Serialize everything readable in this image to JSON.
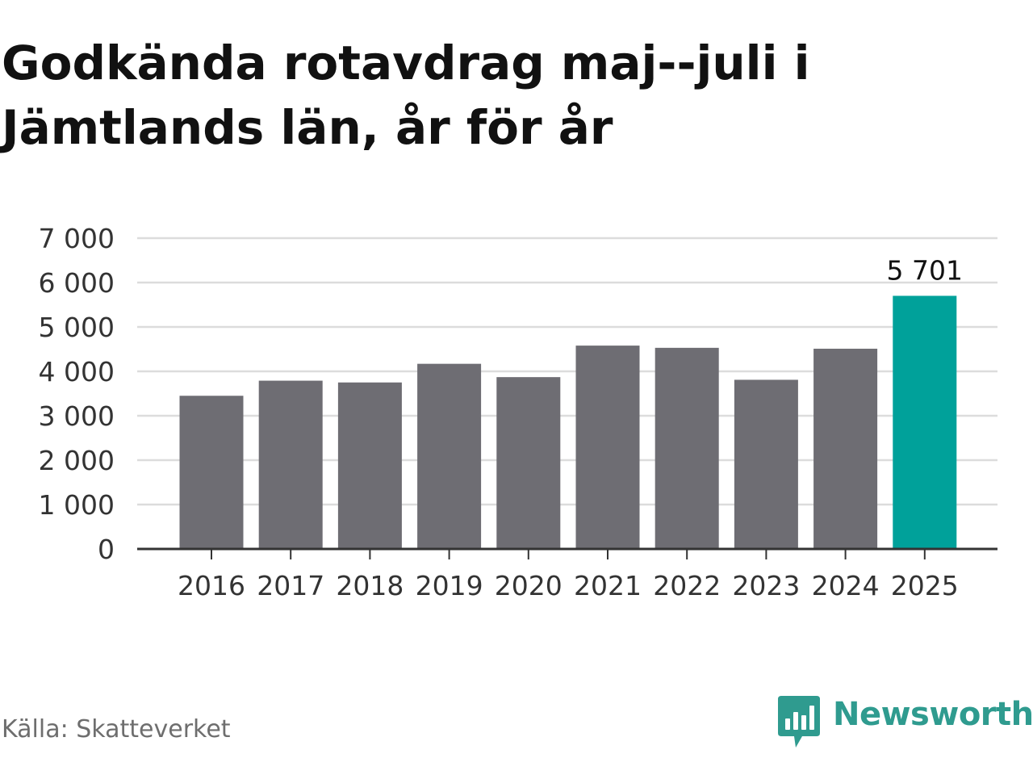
{
  "title": "Godkända rotavdrag maj--juli i Jämtlands län, år för år",
  "source": "Källa: Skatteverket",
  "brand": {
    "name": "Newsworthy",
    "color": "#2f9b8f",
    "icon": "newsworthy-logo-icon"
  },
  "colors": {
    "bar": "#6e6d73",
    "highlight": "#00a19a",
    "grid": "#dcdcdc",
    "axis": "#333333"
  },
  "chart_data": {
    "type": "bar",
    "title": "Godkända rotavdrag maj--juli i Jämtlands län, år för år",
    "xlabel": "",
    "ylabel": "",
    "categories": [
      "2016",
      "2017",
      "2018",
      "2019",
      "2020",
      "2021",
      "2022",
      "2023",
      "2024",
      "2025"
    ],
    "values": [
      3450,
      3790,
      3750,
      4170,
      3870,
      4580,
      4530,
      3810,
      4510,
      5701
    ],
    "highlight_index": 9,
    "data_labels": [
      {
        "index": 9,
        "text": "5 701"
      }
    ],
    "ylim": [
      0,
      7000
    ],
    "yticks": [
      {
        "value": 0,
        "label": "0"
      },
      {
        "value": 1000,
        "label": "1 000"
      },
      {
        "value": 2000,
        "label": "2 000"
      },
      {
        "value": 3000,
        "label": "3 000"
      },
      {
        "value": 4000,
        "label": "4 000"
      },
      {
        "value": 5000,
        "label": "5 000"
      },
      {
        "value": 6000,
        "label": "6 000"
      },
      {
        "value": 7000,
        "label": "7 000"
      }
    ],
    "grid": true,
    "legend": "none"
  }
}
